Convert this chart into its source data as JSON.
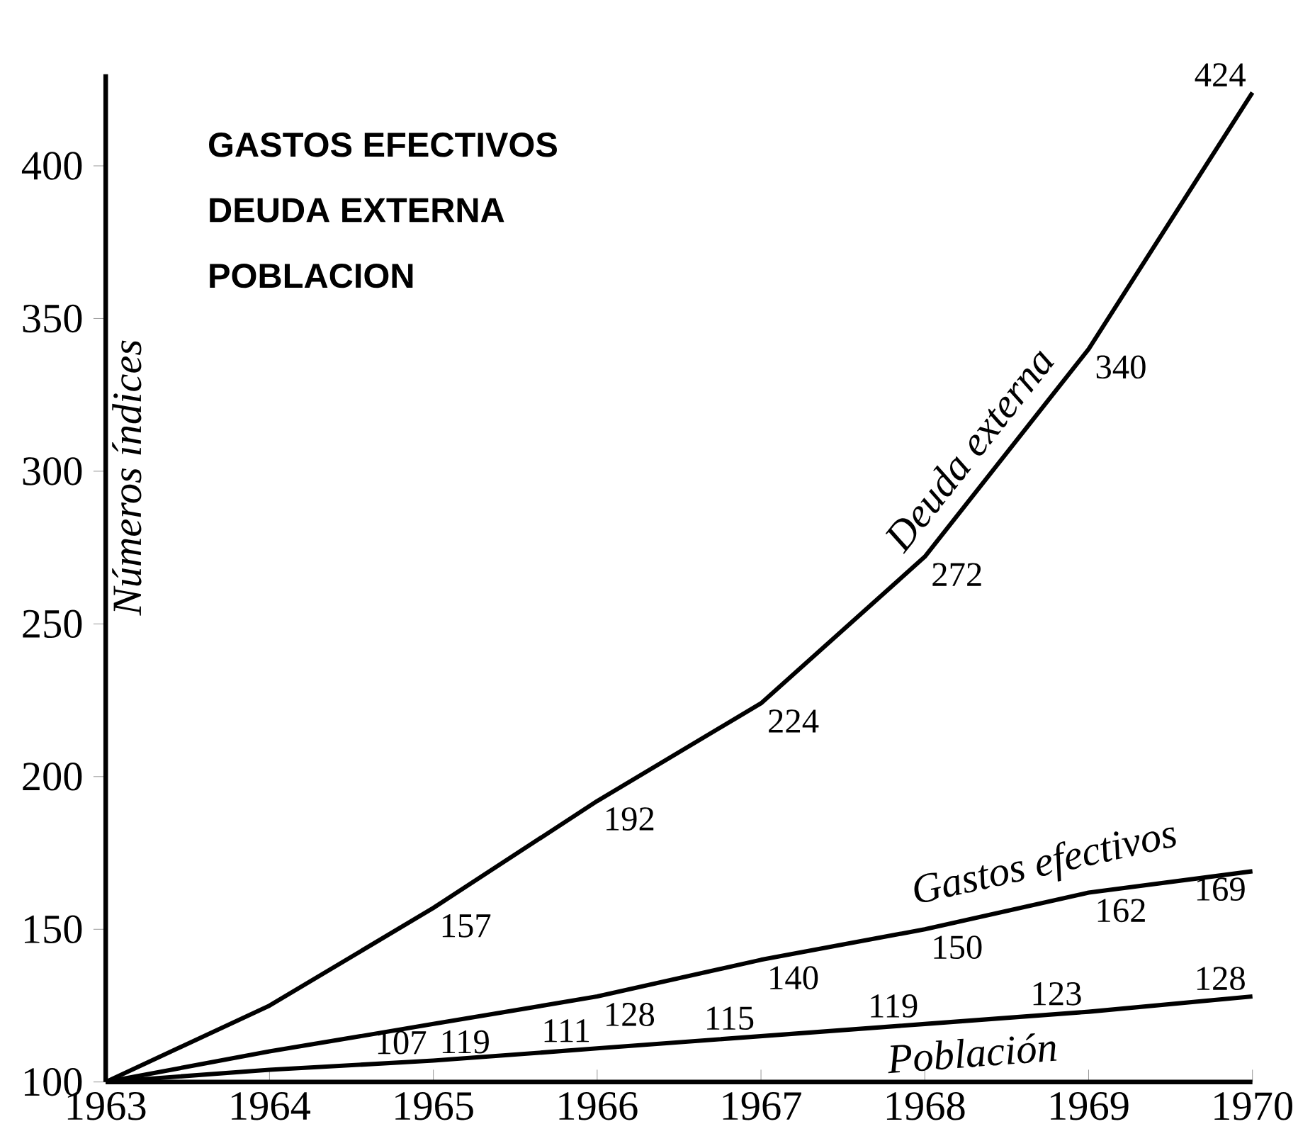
{
  "chart_data": {
    "type": "line",
    "annotations": [
      "GASTOS EFECTIVOS",
      "DEUDA EXTERNA",
      "POBLACION"
    ],
    "ylabel": "Números índices",
    "x": [
      1963,
      1964,
      1965,
      1966,
      1967,
      1968,
      1969,
      1970
    ],
    "xlim": [
      1963,
      1970
    ],
    "xticks": [
      1963,
      1964,
      1965,
      1966,
      1967,
      1968,
      1969,
      1970
    ],
    "ylim": [
      100,
      430
    ],
    "yticks": [
      100,
      150,
      200,
      250,
      300,
      350,
      400
    ],
    "grid": false,
    "legend": false,
    "marker": "none",
    "line_style": "solid",
    "series": [
      {
        "name": "Deuda externa",
        "color": "#000000",
        "values": [
          100,
          125,
          157,
          192,
          224,
          272,
          340,
          424
        ],
        "value_labels": [
          null,
          null,
          "157",
          "192",
          "224",
          "272",
          "340",
          "424"
        ]
      },
      {
        "name": "Gastos efectivos",
        "color": "#000000",
        "values": [
          100,
          110,
          119,
          128,
          140,
          150,
          162,
          169
        ],
        "value_labels": [
          null,
          null,
          "119",
          "128",
          "140",
          "150",
          "162",
          "169"
        ]
      },
      {
        "name": "Población",
        "color": "#000000",
        "values": [
          100,
          104,
          107,
          111,
          115,
          119,
          123,
          128
        ],
        "value_labels": [
          null,
          null,
          "107",
          "111",
          "115",
          "119",
          "123",
          "128"
        ]
      }
    ]
  }
}
